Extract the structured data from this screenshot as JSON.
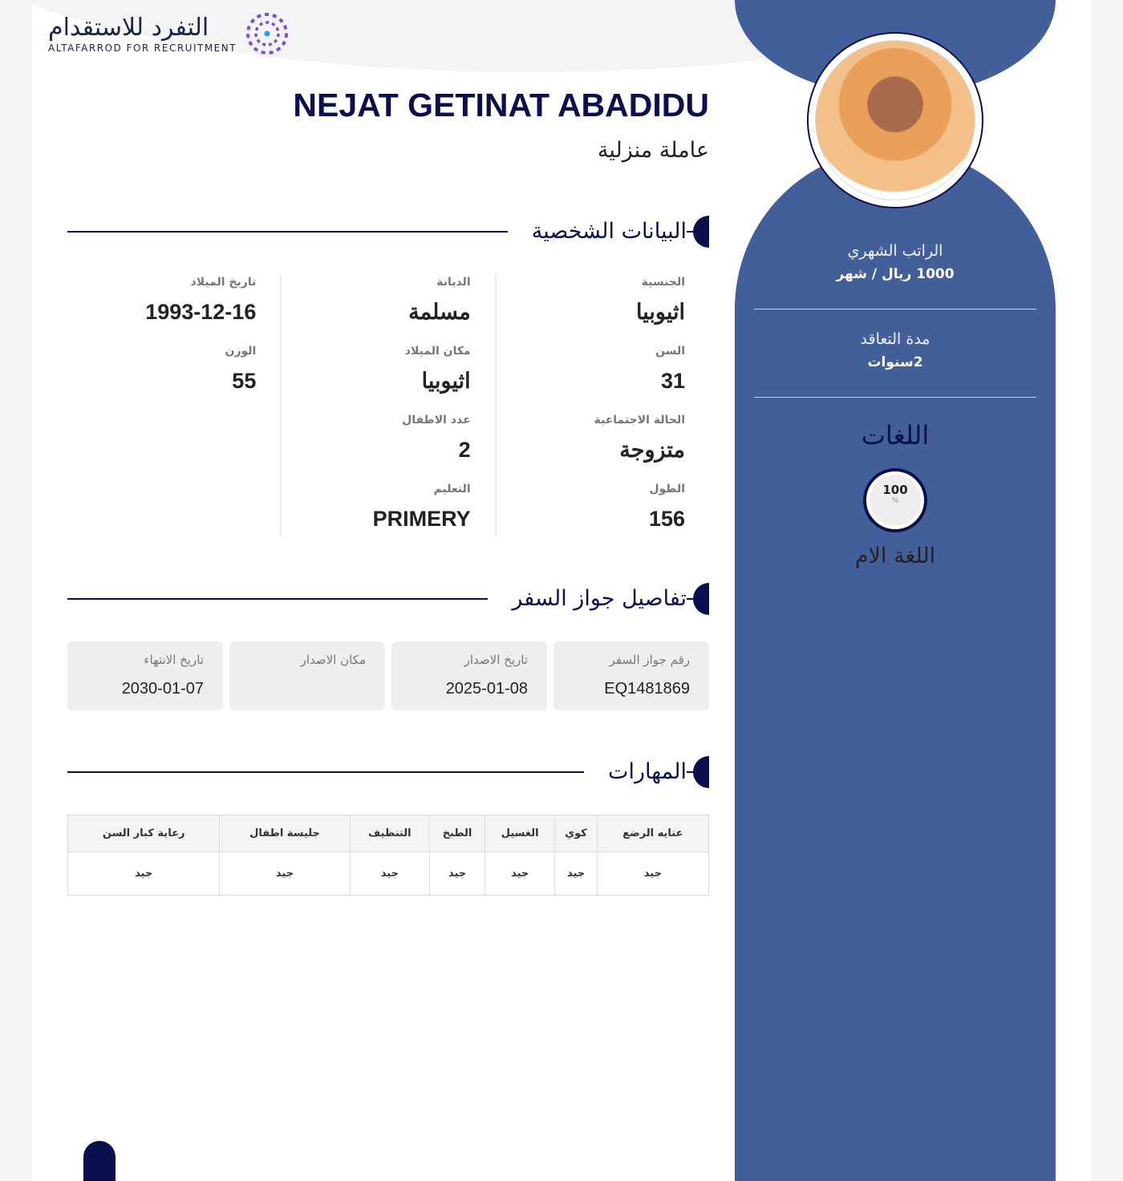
{
  "logo": {
    "arabic": "التفرد للاستقدام",
    "english": "ALTAFARROD FOR RECRUITMENT"
  },
  "profile": {
    "name": "NEJAT GETINAT ABADIDU",
    "job": "عاملة منزلية"
  },
  "sidebar": {
    "salary_label": "الراتب الشهري",
    "salary_value": "1000 ريال / شهر",
    "contract_label": "مدة التعاقد",
    "contract_value": "2سنوات",
    "languages_title": "اللغات",
    "languages": [
      {
        "name": "اللغة الام",
        "percent": "100",
        "unit": "%"
      }
    ]
  },
  "personal": {
    "title": "البيانات الشخصية",
    "columns": [
      [
        {
          "label": "الجنسية",
          "value": "اثيوبيا"
        },
        {
          "label": "السن",
          "value": "31"
        },
        {
          "label": "الحالة الاجتماعية",
          "value": "متزوجة"
        },
        {
          "label": "الطول",
          "value": "156"
        }
      ],
      [
        {
          "label": "الديانة",
          "value": "مسلمة"
        },
        {
          "label": "مكان الميلاد",
          "value": "اثيوبيا"
        },
        {
          "label": "عدد الاطفال",
          "value": "2"
        },
        {
          "label": "التعليم",
          "value": "PRIMERY"
        }
      ],
      [
        {
          "label": "تاريخ الميلاد",
          "value": "1993-12-16"
        },
        {
          "label": "الوزن",
          "value": "55"
        }
      ]
    ]
  },
  "passport": {
    "title": "تفاصيل جواز السفر",
    "cards": [
      {
        "label": "رقم جواز السفر",
        "value": "EQ1481869"
      },
      {
        "label": "تاريخ الاصدار",
        "value": "2025-01-08"
      },
      {
        "label": "مكان الاصدار",
        "value": ""
      },
      {
        "label": "تاريخ الانتهاء",
        "value": "2030-01-07"
      }
    ]
  },
  "skills": {
    "title": "المهارات",
    "headers": [
      "عنايه الرضع",
      "كوي",
      "الغسيل",
      "الطبخ",
      "التنظيف",
      "جليسة اطفال",
      "رعاية كبار السن"
    ],
    "values": [
      "جيد",
      "جيد",
      "جيد",
      "جيد",
      "جيد",
      "جيد",
      "جيد"
    ]
  }
}
